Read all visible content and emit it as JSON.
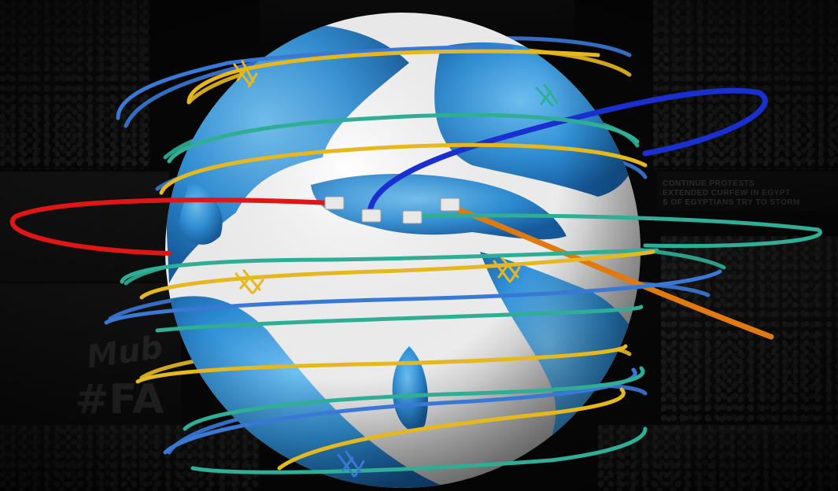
{
  "background": {
    "headline_lines": [
      "CONTINUE PROTESTS",
      "EXTENDED CURFEW IN EGYPT",
      "S OF EGYPTIANS TRY TO STORM"
    ],
    "sign_text_1": "Mub",
    "sign_text_2": "#FA"
  },
  "colors": {
    "ocean": "#2f8fd6",
    "land": "#f2f2f2",
    "wire_yellow": "#e6b820",
    "wire_teal": "#2fae95",
    "wire_blue": "#3a78d6",
    "wire_red": "#e01616",
    "wire_dark_blue": "#1a2fd0",
    "wire_orange": "#e07a10"
  },
  "icons": [
    "globe-icon",
    "barbed-wire-knot-icon",
    "wire-plug-icon"
  ]
}
